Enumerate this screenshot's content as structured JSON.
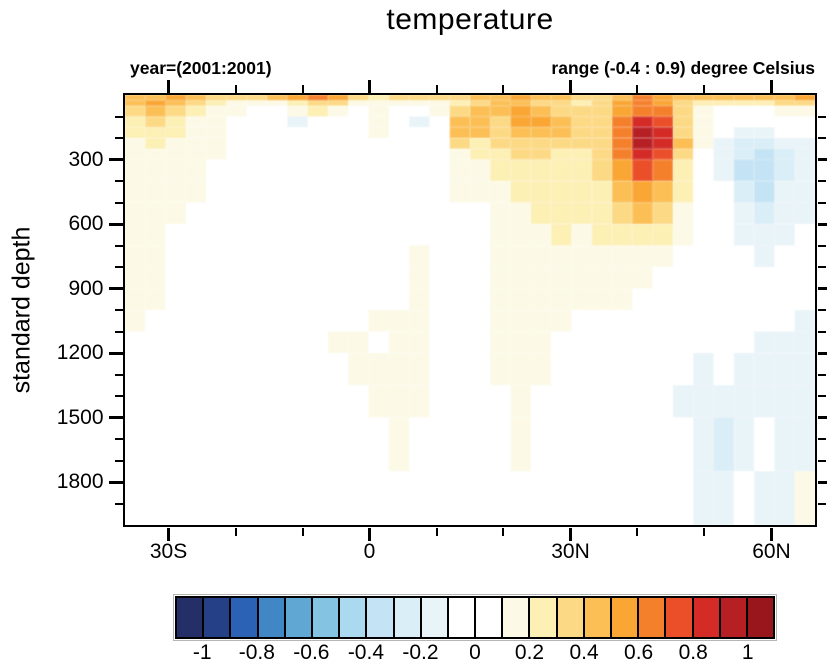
{
  "chart_data": {
    "type": "heatmap",
    "title": "temperature",
    "subtitle_left": "year=(2001:2001)",
    "subtitle_right": "range (-0.4 : 0.9) degree Celsius",
    "ylabel": "standard depth",
    "units": "degree Celsius",
    "value_range": [
      -0.4,
      0.9
    ],
    "lat_range": [
      -36.5,
      66.5
    ],
    "depth_range_m": [
      0,
      2000
    ],
    "x_major_ticks": [
      {
        "lat": -30,
        "label": "30S"
      },
      {
        "lat": 0,
        "label": "0"
      },
      {
        "lat": 30,
        "label": "30N"
      },
      {
        "lat": 60,
        "label": "60N"
      }
    ],
    "x_minor_ticks_lat": [
      -20,
      -10,
      10,
      20,
      40,
      50
    ],
    "y_major_ticks_m": [
      300,
      600,
      900,
      1200,
      1500,
      1800
    ],
    "y_minor_ticks_m": [
      100,
      200,
      400,
      500,
      700,
      800,
      1000,
      1100,
      1300,
      1400,
      1600,
      1700,
      1900
    ],
    "depth_edges_m": [
      0,
      25,
      50,
      100,
      150,
      200,
      250,
      300,
      400,
      500,
      600,
      700,
      800,
      900,
      1000,
      1100,
      1200,
      1350,
      1500,
      1750,
      2000
    ],
    "lat_cell_count": 34,
    "values_degC": [
      [
        0.45,
        0.45,
        0.55,
        0.45,
        0.35,
        0.35,
        0.35,
        0.45,
        0.55,
        0.65,
        0.55,
        0.35,
        0.25,
        0.35,
        0.35,
        0.35,
        0.35,
        0.45,
        0.45,
        0.55,
        0.45,
        0.45,
        0.35,
        0.35,
        0.45,
        0.65,
        0.55,
        0.45,
        0.45,
        0.45,
        0.45,
        0.45,
        0.45,
        0.55
      ],
      [
        0.45,
        0.55,
        0.45,
        0.35,
        0.25,
        0.15,
        0.15,
        0.15,
        0.25,
        0.35,
        0.35,
        0.15,
        0.15,
        0.15,
        0.15,
        0.15,
        0.25,
        0.35,
        0.45,
        0.45,
        0.35,
        0.35,
        0.25,
        0.35,
        0.55,
        0.65,
        0.55,
        0.35,
        0.25,
        0.25,
        0.25,
        0.25,
        0.35,
        0.35
      ],
      [
        0.35,
        0.45,
        0.35,
        0.25,
        0.15,
        0.15,
        0.05,
        0.05,
        0.15,
        0.25,
        0.15,
        0.05,
        0.15,
        0.05,
        0.05,
        0.15,
        0.35,
        0.45,
        0.45,
        0.55,
        0.45,
        0.35,
        0.35,
        0.35,
        0.55,
        0.65,
        0.65,
        0.35,
        0.15,
        0.05,
        0.05,
        0.05,
        0.15,
        0.15
      ],
      [
        0.25,
        0.35,
        0.25,
        0.15,
        0.15,
        0.05,
        0.05,
        -0.05,
        -0.15,
        0.05,
        0.05,
        0.05,
        0.15,
        0.05,
        -0.15,
        0.05,
        0.45,
        0.45,
        0.35,
        0.55,
        0.55,
        0.45,
        0.35,
        0.35,
        0.65,
        0.85,
        0.75,
        0.35,
        0.15,
        0.05,
        0,
        0,
        0,
        0
      ],
      [
        0.25,
        0.25,
        0.25,
        0.15,
        0.15,
        0.05,
        0,
        -0.05,
        -0.05,
        0.05,
        0.05,
        0.05,
        0.15,
        0.05,
        -0.05,
        0.05,
        0.45,
        0.45,
        0.35,
        0.45,
        0.45,
        0.45,
        0.35,
        0.35,
        0.65,
        0.9,
        0.85,
        0.35,
        0.15,
        0.05,
        -0.15,
        -0.15,
        -0.05,
        0
      ],
      [
        0.15,
        0.25,
        0.15,
        0.15,
        0.15,
        0.05,
        0,
        0,
        0,
        0,
        0.05,
        0.05,
        0.05,
        0.05,
        0,
        0.05,
        0.35,
        0.25,
        0.35,
        0.35,
        0.35,
        0.35,
        0.35,
        0.35,
        0.65,
        0.9,
        0.85,
        0.45,
        0.15,
        -0.15,
        -0.25,
        -0.25,
        -0.15,
        -0.15
      ],
      [
        0.15,
        0.15,
        0.15,
        0.15,
        0.15,
        0.05,
        0,
        0,
        0,
        0,
        0,
        0.05,
        0.05,
        0,
        0,
        0.05,
        0.15,
        0.25,
        0.25,
        0.35,
        0.35,
        0.25,
        0.25,
        0.35,
        0.65,
        0.85,
        0.75,
        0.35,
        0.05,
        -0.15,
        -0.25,
        -0.35,
        -0.25,
        -0.15
      ],
      [
        0.15,
        0.15,
        0.15,
        0.15,
        0.05,
        0.05,
        0,
        0,
        0,
        0,
        0,
        0,
        0.05,
        0.05,
        0,
        0,
        0.15,
        0.15,
        0.25,
        0.25,
        0.25,
        0.25,
        0.25,
        0.35,
        0.55,
        0.75,
        0.65,
        0.25,
        0.05,
        -0.15,
        -0.35,
        -0.35,
        -0.25,
        -0.15
      ],
      [
        0.15,
        0.15,
        0.15,
        0.15,
        0.05,
        0,
        0,
        0,
        0,
        0,
        0,
        0,
        0.05,
        0.05,
        0.05,
        0,
        0.15,
        0.15,
        0.15,
        0.25,
        0.25,
        0.25,
        0.25,
        0.25,
        0.45,
        0.55,
        0.45,
        0.25,
        0.05,
        -0.05,
        -0.25,
        -0.35,
        -0.15,
        -0.15
      ],
      [
        0.15,
        0.15,
        0.12,
        0.05,
        0.05,
        0,
        0,
        0,
        0,
        0,
        0,
        0,
        0,
        0.05,
        0.05,
        0.05,
        0.05,
        0.05,
        0.15,
        0.15,
        0.25,
        0.25,
        0.25,
        0.25,
        0.35,
        0.45,
        0.35,
        0.15,
        0.05,
        -0.05,
        -0.15,
        -0.25,
        -0.15,
        -0.15
      ],
      [
        0.15,
        0.15,
        0.05,
        0.05,
        0,
        0,
        0,
        0,
        0,
        0,
        0,
        0,
        0,
        0.05,
        0.05,
        0.05,
        0.05,
        0.05,
        0.15,
        0.15,
        0.15,
        0.25,
        0.15,
        0.25,
        0.25,
        0.25,
        0.25,
        0.15,
        0,
        -0.05,
        -0.15,
        -0.15,
        -0.15,
        -0.05
      ],
      [
        0.15,
        0.12,
        0.05,
        0,
        0,
        0,
        0,
        0,
        0,
        0,
        0,
        0,
        0,
        0.05,
        0.12,
        0.05,
        0.05,
        0.05,
        0.15,
        0.15,
        0.15,
        0.15,
        0.15,
        0.15,
        0.15,
        0.15,
        0.15,
        0.05,
        0,
        -0.05,
        -0.05,
        -0.15,
        -0.05,
        -0.05
      ],
      [
        0.12,
        0.12,
        0.05,
        0,
        0,
        0,
        0,
        0,
        0,
        0,
        0,
        0,
        0,
        0.05,
        0.15,
        0.05,
        0.05,
        0.05,
        0.15,
        0.15,
        0.15,
        0.15,
        0.15,
        0.15,
        0.15,
        0.12,
        0.05,
        0.05,
        0,
        0,
        -0.05,
        -0.05,
        -0.05,
        0
      ],
      [
        0.12,
        0.12,
        0,
        0,
        0,
        0,
        0,
        0,
        0,
        0,
        0,
        0,
        0,
        0.05,
        0.12,
        0.05,
        0.05,
        0.05,
        0.12,
        0.15,
        0.15,
        0.15,
        0.12,
        0.12,
        0.12,
        0.05,
        0.05,
        0,
        0,
        0,
        -0.05,
        -0.05,
        -0.05,
        0
      ],
      [
        0.12,
        0.05,
        0,
        0,
        0,
        0,
        0,
        0,
        0,
        0,
        0,
        0.05,
        0.12,
        0.12,
        0.12,
        0.05,
        0.05,
        0.05,
        0.12,
        0.15,
        0.12,
        0.12,
        0.05,
        0.05,
        0.05,
        0.05,
        0,
        0,
        -0.05,
        -0.05,
        -0.05,
        -0.05,
        -0.05,
        -0.15
      ],
      [
        0,
        0,
        0,
        0,
        0,
        0,
        0,
        0,
        0,
        0,
        0.12,
        0.12,
        0.05,
        0.12,
        0.12,
        0.05,
        0,
        0.05,
        0.12,
        0.12,
        0.12,
        0.05,
        0.05,
        0,
        0,
        0,
        0,
        -0.05,
        -0.05,
        -0.05,
        -0.05,
        -0.15,
        -0.15,
        -0.15
      ],
      [
        0,
        0,
        0,
        0,
        0,
        0,
        0,
        0,
        0,
        0,
        0.05,
        0.12,
        0.12,
        0.15,
        0.12,
        0.05,
        0,
        0,
        0.12,
        0.15,
        0.12,
        0.05,
        0,
        0,
        0,
        0,
        0,
        -0.05,
        -0.15,
        -0.05,
        -0.15,
        -0.15,
        -0.15,
        -0.15
      ],
      [
        0,
        0,
        0,
        0,
        0,
        0,
        0,
        0,
        0,
        0,
        0,
        0.05,
        0.12,
        0.12,
        0.12,
        0,
        0,
        0,
        0.05,
        0.12,
        0.05,
        0,
        0,
        0,
        0,
        0,
        0,
        -0.15,
        -0.15,
        -0.15,
        -0.15,
        -0.15,
        -0.15,
        -0.15
      ],
      [
        0,
        0,
        0,
        0,
        0,
        0,
        0,
        0,
        0,
        0,
        0,
        0,
        0.05,
        0.12,
        0.05,
        0,
        0,
        0,
        0,
        0.12,
        0.05,
        0,
        0,
        0,
        0,
        0,
        0,
        -0.05,
        -0.15,
        -0.25,
        -0.15,
        -0.05,
        -0.15,
        -0.15
      ],
      [
        0,
        0,
        0,
        0,
        0,
        0,
        0,
        0,
        0,
        0,
        0,
        0,
        0,
        0.05,
        0,
        0,
        0,
        0,
        0,
        0.05,
        0,
        0,
        0,
        0,
        0,
        0,
        0,
        0,
        -0.15,
        -0.15,
        -0.05,
        -0.15,
        -0.15,
        0.12
      ]
    ],
    "colorbar": {
      "labels": [
        "-1",
        "-0.8",
        "-0.6",
        "-0.4",
        "-0.2",
        "0",
        "0.2",
        "0.4",
        "0.6",
        "0.8",
        "1"
      ],
      "levels": [
        -1,
        -0.9,
        -0.8,
        -0.7,
        -0.6,
        -0.5,
        -0.4,
        -0.3,
        -0.2,
        -0.1,
        0,
        0.1,
        0.2,
        0.3,
        0.4,
        0.5,
        0.6,
        0.7,
        0.8,
        0.9,
        1
      ],
      "colors": [
        "#232f66",
        "#254086",
        "#2b62b5",
        "#4186c5",
        "#60a7d4",
        "#84c4e2",
        "#abd9f0",
        "#c4e3f4",
        "#daeef7",
        "#e9f4f9",
        "#ffffff",
        "#ffffff",
        "#fcfae6",
        "#fdf0b5",
        "#fcd985",
        "#fbbf55",
        "#faa634",
        "#f5802c",
        "#ea4f29",
        "#d42b27",
        "#b62025",
        "#99161c"
      ]
    }
  }
}
